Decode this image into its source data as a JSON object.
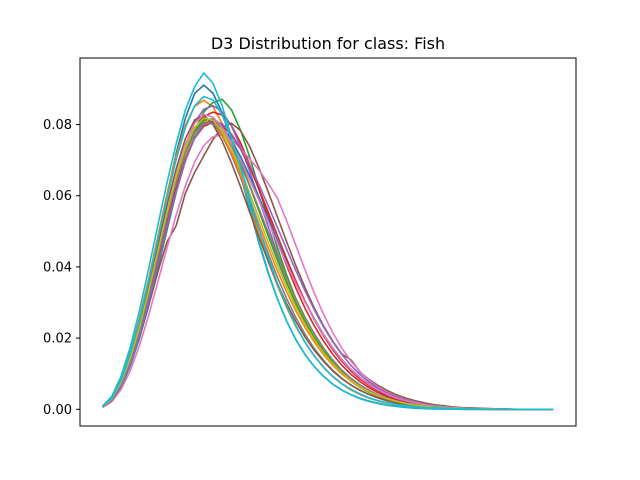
{
  "chart_data": {
    "type": "line",
    "title": "D3 Distribution for class: Fish",
    "xlabel": "",
    "ylabel": "",
    "x_ticks_visible": false,
    "x": [
      0,
      1,
      2,
      3,
      4,
      5,
      6,
      7,
      8,
      9,
      10,
      11,
      12,
      13,
      14,
      15,
      16,
      17,
      18,
      19,
      20,
      21,
      22,
      23,
      24,
      25,
      26,
      27,
      28,
      29,
      30,
      31,
      32,
      33,
      34,
      35,
      36,
      37,
      38,
      39,
      40,
      41,
      42,
      43,
      44,
      45,
      46,
      47,
      48,
      49
    ],
    "xlim": [
      -2.45,
      51.45
    ],
    "ylim": [
      -0.0047,
      0.0987
    ],
    "yticks": [
      0.0,
      0.02,
      0.04,
      0.06,
      0.08
    ],
    "ytick_labels": [
      "0.00",
      "0.02",
      "0.04",
      "0.06",
      "0.08"
    ],
    "grid": false,
    "legend": "none",
    "series": [
      {
        "color": "#1f77b4",
        "values": [
          0.0008,
          0.0032,
          0.0081,
          0.0154,
          0.0248,
          0.0357,
          0.0478,
          0.0602,
          0.0719,
          0.0818,
          0.0887,
          0.0911,
          0.0888,
          0.0833,
          0.0753,
          0.0659,
          0.0561,
          0.0467,
          0.0383,
          0.031,
          0.0248,
          0.0196,
          0.0154,
          0.012,
          0.0093,
          0.0071,
          0.0054,
          0.0041,
          0.003,
          0.0022,
          0.0016,
          0.0011,
          0.0008,
          0.0005,
          0.0003,
          0.0002,
          0.0001,
          0.0001,
          0.0001,
          0.0,
          0.0,
          0.0,
          0.0,
          0.0,
          0.0,
          0.0,
          0.0,
          0.0,
          0.0,
          0.0
        ]
      },
      {
        "color": "#ff7f0e",
        "values": [
          0.0008,
          0.0033,
          0.0085,
          0.016,
          0.0256,
          0.0366,
          0.0485,
          0.0605,
          0.0712,
          0.0798,
          0.0851,
          0.0868,
          0.085,
          0.0803,
          0.0736,
          0.0657,
          0.0574,
          0.0492,
          0.0416,
          0.0347,
          0.0286,
          0.0233,
          0.0188,
          0.015,
          0.0118,
          0.0092,
          0.0071,
          0.0054,
          0.0041,
          0.0031,
          0.0023,
          0.0017,
          0.0012,
          0.0009,
          0.0006,
          0.0004,
          0.0003,
          0.0002,
          0.0001,
          0.0001,
          0.0001,
          0.0,
          0.0,
          0.0,
          0.0,
          0.0,
          0.0,
          0.0,
          0.0,
          0.0
        ]
      },
      {
        "color": "#2ca02c",
        "values": [
          0.0006,
          0.0024,
          0.0062,
          0.0121,
          0.0198,
          0.029,
          0.0394,
          0.0503,
          0.0609,
          0.0705,
          0.0782,
          0.0835,
          0.0862,
          0.0871,
          0.0842,
          0.0784,
          0.0708,
          0.0622,
          0.0536,
          0.0454,
          0.0378,
          0.0311,
          0.0253,
          0.0204,
          0.0163,
          0.0129,
          0.0101,
          0.0079,
          0.0061,
          0.0047,
          0.0036,
          0.0027,
          0.002,
          0.0015,
          0.0011,
          0.0008,
          0.0006,
          0.0004,
          0.0003,
          0.0002,
          0.0001,
          0.0001,
          0.0001,
          0.0,
          0.0,
          0.0,
          0.0,
          0.0,
          0.0,
          0.0
        ]
      },
      {
        "color": "#d62728",
        "values": [
          0.0007,
          0.0028,
          0.0071,
          0.0135,
          0.0219,
          0.0318,
          0.0427,
          0.0538,
          0.0641,
          0.0727,
          0.0789,
          0.0822,
          0.0835,
          0.0827,
          0.0798,
          0.0749,
          0.0687,
          0.0617,
          0.0544,
          0.0472,
          0.0404,
          0.0341,
          0.0284,
          0.0235,
          0.0192,
          0.0155,
          0.0124,
          0.0098,
          0.0077,
          0.006,
          0.0046,
          0.0035,
          0.0026,
          0.0019,
          0.0014,
          0.001,
          0.0007,
          0.0005,
          0.0003,
          0.0002,
          0.0001,
          0.0001,
          0.0001,
          0.0,
          0.0,
          0.0,
          0.0,
          0.0,
          0.0,
          0.0
        ]
      },
      {
        "color": "#9467bd",
        "values": [
          0.0007,
          0.0029,
          0.0074,
          0.014,
          0.0227,
          0.0329,
          0.044,
          0.0552,
          0.0655,
          0.0742,
          0.0806,
          0.0843,
          0.0853,
          0.0836,
          0.0796,
          0.0738,
          0.0668,
          0.0591,
          0.0513,
          0.0438,
          0.0368,
          0.0305,
          0.025,
          0.0203,
          0.0163,
          0.013,
          0.0102,
          0.008,
          0.0062,
          0.0048,
          0.0036,
          0.0027,
          0.002,
          0.0015,
          0.0011,
          0.0008,
          0.0006,
          0.0004,
          0.0003,
          0.0002,
          0.0001,
          0.0001,
          0.0001,
          0.0,
          0.0,
          0.0,
          0.0,
          0.0,
          0.0,
          0.0
        ]
      },
      {
        "color": "#8c564b",
        "values": [
          0.0006,
          0.0025,
          0.0065,
          0.0124,
          0.0201,
          0.029,
          0.0385,
          0.047,
          0.0516,
          0.0607,
          0.0665,
          0.0712,
          0.0758,
          0.0792,
          0.0804,
          0.0783,
          0.0738,
          0.0678,
          0.0611,
          0.0541,
          0.0471,
          0.0404,
          0.0342,
          0.0285,
          0.0235,
          0.0192,
          0.0155,
          0.0139,
          0.0104,
          0.0083,
          0.0066,
          0.0052,
          0.004,
          0.0031,
          0.0024,
          0.0018,
          0.0013,
          0.001,
          0.0007,
          0.0005,
          0.0004,
          0.0003,
          0.0002,
          0.0001,
          0.0001,
          0.0,
          0.0,
          0.0,
          0.0,
          0.0
        ]
      },
      {
        "color": "#e377c2",
        "values": [
          0.0005,
          0.0021,
          0.0055,
          0.0107,
          0.0178,
          0.0263,
          0.0357,
          0.0453,
          0.0546,
          0.0628,
          0.0694,
          0.0741,
          0.0766,
          0.0771,
          0.0758,
          0.0733,
          0.0703,
          0.0672,
          0.0635,
          0.0593,
          0.053,
          0.0461,
          0.0392,
          0.0327,
          0.0268,
          0.0216,
          0.0172,
          0.0135,
          0.0105,
          0.0081,
          0.0062,
          0.0047,
          0.0035,
          0.0026,
          0.0019,
          0.0014,
          0.001,
          0.0007,
          0.0005,
          0.0003,
          0.0002,
          0.0002,
          0.0001,
          0.0001,
          0.0,
          0.0,
          0.0,
          0.0,
          0.0,
          0.0
        ]
      },
      {
        "color": "#7f7f7f",
        "values": [
          0.0007,
          0.0028,
          0.0072,
          0.0137,
          0.0221,
          0.032,
          0.0428,
          0.0537,
          0.0638,
          0.0722,
          0.0781,
          0.0808,
          0.0801,
          0.0768,
          0.0715,
          0.0651,
          0.058,
          0.0507,
          0.0437,
          0.0371,
          0.0311,
          0.0258,
          0.0211,
          0.0171,
          0.0138,
          0.011,
          0.0087,
          0.0068,
          0.0053,
          0.0041,
          0.0031,
          0.0023,
          0.0017,
          0.0013,
          0.0009,
          0.0007,
          0.0005,
          0.0003,
          0.0002,
          0.0002,
          0.0001,
          0.0001,
          0.0,
          0.0,
          0.0,
          0.0,
          0.0,
          0.0,
          0.0,
          0.0
        ]
      },
      {
        "color": "#bcbd22",
        "values": [
          0.0007,
          0.0027,
          0.0069,
          0.0133,
          0.0216,
          0.0314,
          0.0421,
          0.0529,
          0.0629,
          0.0712,
          0.0771,
          0.0803,
          0.0806,
          0.0786,
          0.0747,
          0.0694,
          0.0631,
          0.0563,
          0.0494,
          0.0426,
          0.0362,
          0.0304,
          0.0252,
          0.0206,
          0.0167,
          0.0134,
          0.0106,
          0.0084,
          0.0065,
          0.005,
          0.0038,
          0.0029,
          0.0022,
          0.0016,
          0.0012,
          0.0009,
          0.0006,
          0.0004,
          0.0003,
          0.0002,
          0.0001,
          0.0001,
          0.0001,
          0.0,
          0.0,
          0.0,
          0.0,
          0.0,
          0.0,
          0.0
        ]
      },
      {
        "color": "#17becf",
        "values": [
          0.0009,
          0.0036,
          0.0092,
          0.0173,
          0.0276,
          0.0393,
          0.0516,
          0.0636,
          0.0746,
          0.0841,
          0.0906,
          0.0945,
          0.0916,
          0.0853,
          0.0765,
          0.0667,
          0.0567,
          0.0472,
          0.0386,
          0.0311,
          0.0248,
          0.0196,
          0.0154,
          0.012,
          0.0093,
          0.0071,
          0.0054,
          0.0041,
          0.0031,
          0.0023,
          0.0017,
          0.0012,
          0.0009,
          0.0006,
          0.0004,
          0.0003,
          0.0002,
          0.0001,
          0.0001,
          0.0,
          0.0,
          0.0,
          0.0,
          0.0,
          0.0,
          0.0,
          0.0,
          0.0,
          0.0,
          0.0
        ]
      },
      {
        "color": "#1f77b4",
        "values": [
          0.0006,
          0.0025,
          0.0064,
          0.0124,
          0.0203,
          0.0297,
          0.0401,
          0.0508,
          0.061,
          0.0698,
          0.0764,
          0.0801,
          0.0809,
          0.0792,
          0.0757,
          0.071,
          0.0655,
          0.0596,
          0.0535,
          0.0474,
          0.0414,
          0.0357,
          0.0303,
          0.0255,
          0.0211,
          0.0173,
          0.014,
          0.0112,
          0.0089,
          0.007,
          0.0054,
          0.0042,
          0.0032,
          0.0024,
          0.0018,
          0.0013,
          0.001,
          0.0007,
          0.0005,
          0.0004,
          0.0003,
          0.0002,
          0.0001,
          0.0001,
          0.0,
          0.0,
          0.0,
          0.0,
          0.0,
          0.0
        ]
      },
      {
        "color": "#ff7f0e",
        "values": [
          0.0007,
          0.0028,
          0.0073,
          0.0139,
          0.0225,
          0.0326,
          0.0436,
          0.0547,
          0.0648,
          0.0731,
          0.0787,
          0.0811,
          0.0804,
          0.0771,
          0.0721,
          0.0659,
          0.0591,
          0.0521,
          0.0453,
          0.0389,
          0.033,
          0.0277,
          0.023,
          0.0189,
          0.0154,
          0.0124,
          0.0099,
          0.0079,
          0.0062,
          0.0048,
          0.0037,
          0.0028,
          0.0021,
          0.0016,
          0.0012,
          0.0009,
          0.0006,
          0.0004,
          0.0003,
          0.0002,
          0.0001,
          0.0001,
          0.0001,
          0.0,
          0.0,
          0.0,
          0.0,
          0.0,
          0.0,
          0.0
        ]
      },
      {
        "color": "#2ca02c",
        "values": [
          0.0007,
          0.0027,
          0.007,
          0.0134,
          0.0218,
          0.0317,
          0.0425,
          0.0534,
          0.0635,
          0.072,
          0.0781,
          0.0813,
          0.0816,
          0.0793,
          0.075,
          0.0693,
          0.0627,
          0.0557,
          0.0487,
          0.0419,
          0.0356,
          0.0298,
          0.0247,
          0.0202,
          0.0164,
          0.0131,
          0.0104,
          0.0082,
          0.0064,
          0.0049,
          0.0038,
          0.0028,
          0.0021,
          0.0016,
          0.0012,
          0.0008,
          0.0006,
          0.0004,
          0.0003,
          0.0002,
          0.0001,
          0.0001,
          0.0001,
          0.0,
          0.0,
          0.0,
          0.0,
          0.0,
          0.0,
          0.0
        ]
      },
      {
        "color": "#d62728",
        "values": [
          0.0006,
          0.0026,
          0.0068,
          0.0131,
          0.0214,
          0.0312,
          0.0418,
          0.0524,
          0.0621,
          0.0702,
          0.0761,
          0.0795,
          0.0806,
          0.0797,
          0.0771,
          0.0731,
          0.0679,
          0.0619,
          0.0554,
          0.0488,
          0.0423,
          0.0361,
          0.0304,
          0.0252,
          0.0207,
          0.0168,
          0.0135,
          0.0107,
          0.0084,
          0.0066,
          0.0051,
          0.0039,
          0.003,
          0.0022,
          0.0017,
          0.0012,
          0.0009,
          0.0006,
          0.0005,
          0.0003,
          0.0002,
          0.0002,
          0.0001,
          0.0001,
          0.0,
          0.0,
          0.0,
          0.0,
          0.0,
          0.0
        ]
      },
      {
        "color": "#9467bd",
        "values": [
          0.0006,
          0.0025,
          0.0065,
          0.0126,
          0.0206,
          0.0301,
          0.0405,
          0.0512,
          0.0612,
          0.0698,
          0.0762,
          0.08,
          0.0812,
          0.0802,
          0.0774,
          0.0734,
          0.0686,
          0.0631,
          0.0572,
          0.0511,
          0.045,
          0.039,
          0.0333,
          0.028,
          0.0232,
          0.019,
          0.0154,
          0.0123,
          0.0097,
          0.0076,
          0.0059,
          0.0045,
          0.0034,
          0.0026,
          0.0019,
          0.0014,
          0.001,
          0.0007,
          0.0005,
          0.0004,
          0.0003,
          0.0002,
          0.0001,
          0.0001,
          0.0,
          0.0,
          0.0,
          0.0,
          0.0,
          0.0
        ]
      },
      {
        "color": "#8c564b",
        "values": [
          0.0008,
          0.0031,
          0.0079,
          0.015,
          0.024,
          0.0345,
          0.0459,
          0.0573,
          0.0676,
          0.076,
          0.0813,
          0.0826,
          0.08,
          0.0754,
          0.0693,
          0.0625,
          0.0553,
          0.0483,
          0.0416,
          0.0353,
          0.0297,
          0.0247,
          0.0203,
          0.0166,
          0.0135,
          0.0108,
          0.0086,
          0.0068,
          0.0053,
          0.0041,
          0.0032,
          0.0024,
          0.0018,
          0.0014,
          0.001,
          0.0007,
          0.0005,
          0.0004,
          0.0003,
          0.0002,
          0.0001,
          0.0001,
          0.0,
          0.0,
          0.0,
          0.0,
          0.0,
          0.0,
          0.0,
          0.0
        ]
      },
      {
        "color": "#e377c2",
        "values": [
          0.0007,
          0.0029,
          0.0074,
          0.0141,
          0.0228,
          0.033,
          0.0442,
          0.0555,
          0.0659,
          0.0745,
          0.0803,
          0.0828,
          0.0821,
          0.0792,
          0.075,
          0.07,
          0.0645,
          0.0587,
          0.0527,
          0.0467,
          0.0409,
          0.0353,
          0.0301,
          0.0253,
          0.021,
          0.0172,
          0.0139,
          0.0111,
          0.0088,
          0.0069,
          0.0054,
          0.0041,
          0.0031,
          0.0024,
          0.0018,
          0.0013,
          0.0009,
          0.0007,
          0.0005,
          0.0003,
          0.0002,
          0.0002,
          0.0001,
          0.0001,
          0.0,
          0.0,
          0.0,
          0.0,
          0.0,
          0.0
        ]
      },
      {
        "color": "#7f7f7f",
        "values": [
          0.0007,
          0.0028,
          0.0071,
          0.0136,
          0.022,
          0.0319,
          0.0428,
          0.0537,
          0.0637,
          0.072,
          0.0777,
          0.0804,
          0.0802,
          0.0779,
          0.0739,
          0.0687,
          0.0627,
          0.0563,
          0.0497,
          0.0432,
          0.037,
          0.0312,
          0.0259,
          0.0213,
          0.0173,
          0.0139,
          0.011,
          0.0087,
          0.0068,
          0.0053,
          0.004,
          0.0031,
          0.0023,
          0.0017,
          0.0013,
          0.0009,
          0.0007,
          0.0005,
          0.0003,
          0.0002,
          0.0002,
          0.0001,
          0.0001,
          0.0,
          0.0,
          0.0,
          0.0,
          0.0,
          0.0,
          0.0
        ]
      },
      {
        "color": "#bcbd22",
        "values": [
          0.0007,
          0.0029,
          0.0075,
          0.0142,
          0.0229,
          0.0331,
          0.0442,
          0.0553,
          0.0654,
          0.0736,
          0.0792,
          0.0818,
          0.0812,
          0.0781,
          0.0733,
          0.0673,
          0.0606,
          0.0537,
          0.0469,
          0.0404,
          0.0343,
          0.0288,
          0.0239,
          0.0196,
          0.0159,
          0.0128,
          0.0102,
          0.0081,
          0.0063,
          0.0049,
          0.0038,
          0.0029,
          0.0022,
          0.0016,
          0.0012,
          0.0009,
          0.0006,
          0.0004,
          0.0003,
          0.0002,
          0.0002,
          0.0001,
          0.0001,
          0.0,
          0.0,
          0.0,
          0.0,
          0.0,
          0.0,
          0.0
        ]
      },
      {
        "color": "#17becf",
        "values": [
          0.0008,
          0.0032,
          0.0082,
          0.0155,
          0.0249,
          0.0357,
          0.0475,
          0.0593,
          0.0702,
          0.0791,
          0.0852,
          0.0879,
          0.0869,
          0.0827,
          0.0761,
          0.0681,
          0.0594,
          0.0508,
          0.0427,
          0.0354,
          0.029,
          0.0235,
          0.0189,
          0.0151,
          0.0119,
          0.0093,
          0.0072,
          0.0056,
          0.0043,
          0.0032,
          0.0024,
          0.0018,
          0.0013,
          0.001,
          0.0007,
          0.0005,
          0.0004,
          0.0003,
          0.0002,
          0.0001,
          0.0001,
          0.0001,
          0.0,
          0.0,
          0.0,
          0.0,
          0.0,
          0.0,
          0.0,
          0.0
        ]
      }
    ]
  }
}
